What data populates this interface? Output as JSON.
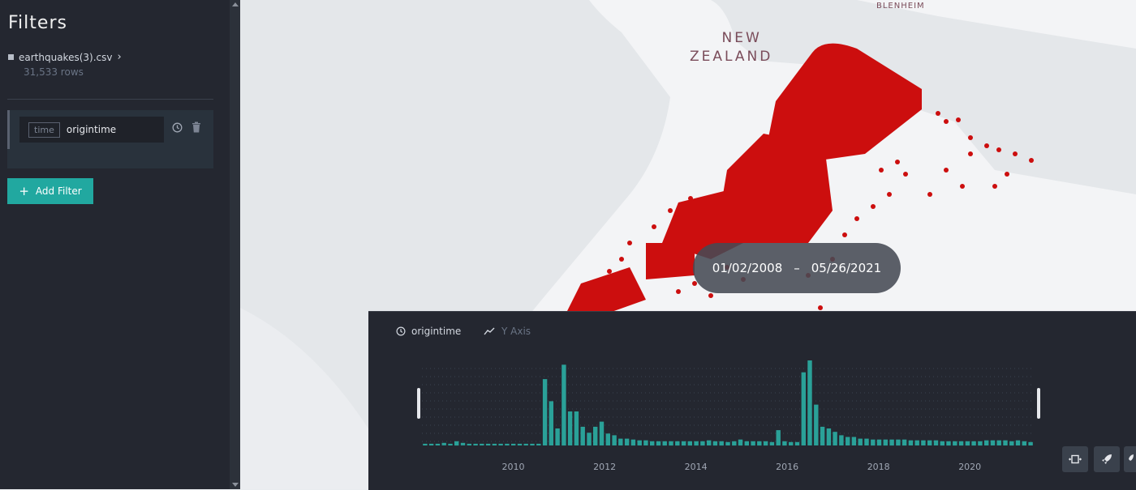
{
  "sidebar": {
    "title": "Filters",
    "dataset": {
      "name": "earthquakes(3).csv",
      "rows": "31,533 rows"
    },
    "filter": {
      "type_badge": "time",
      "field": "origintime"
    },
    "add_filter_label": "Add Filter"
  },
  "map": {
    "labels": {
      "country_line1": "NEW",
      "country_line2": "ZEALAND",
      "city": "BLENHEIM"
    },
    "point_color": "#cc0e0e"
  },
  "time_range": {
    "start": "01/02/2008",
    "separator": "–",
    "end": "05/26/2021"
  },
  "time_panel": {
    "field_label": "origintime",
    "y_axis_label": "Y Axis"
  },
  "chart_data": {
    "type": "bar",
    "x_start": 2008.0,
    "x_end": 2021.4,
    "ticks": [
      "2010",
      "2012",
      "2014",
      "2016",
      "2018",
      "2020"
    ],
    "tick_values": [
      2010,
      2012,
      2014,
      2016,
      2018,
      2020
    ],
    "values": [
      2,
      2,
      2,
      3,
      2,
      5,
      3,
      2,
      2,
      2,
      2,
      2,
      2,
      2,
      2,
      2,
      2,
      2,
      2,
      78,
      52,
      20,
      95,
      40,
      40,
      22,
      15,
      22,
      28,
      14,
      12,
      8,
      8,
      7,
      6,
      6,
      5,
      5,
      5,
      5,
      5,
      5,
      5,
      5,
      5,
      6,
      5,
      5,
      4,
      5,
      7,
      5,
      5,
      5,
      5,
      4,
      18,
      5,
      4,
      4,
      86,
      100,
      48,
      22,
      20,
      16,
      12,
      10,
      10,
      8,
      8,
      7,
      7,
      7,
      7,
      7,
      7,
      6,
      6,
      6,
      6,
      6,
      5,
      5,
      5,
      5,
      5,
      5,
      5,
      6,
      6,
      6,
      6,
      5,
      6,
      5,
      4
    ],
    "color": "#2aa198"
  },
  "controls": [
    "expand-icon",
    "rocket-icon",
    "settings-icon"
  ]
}
